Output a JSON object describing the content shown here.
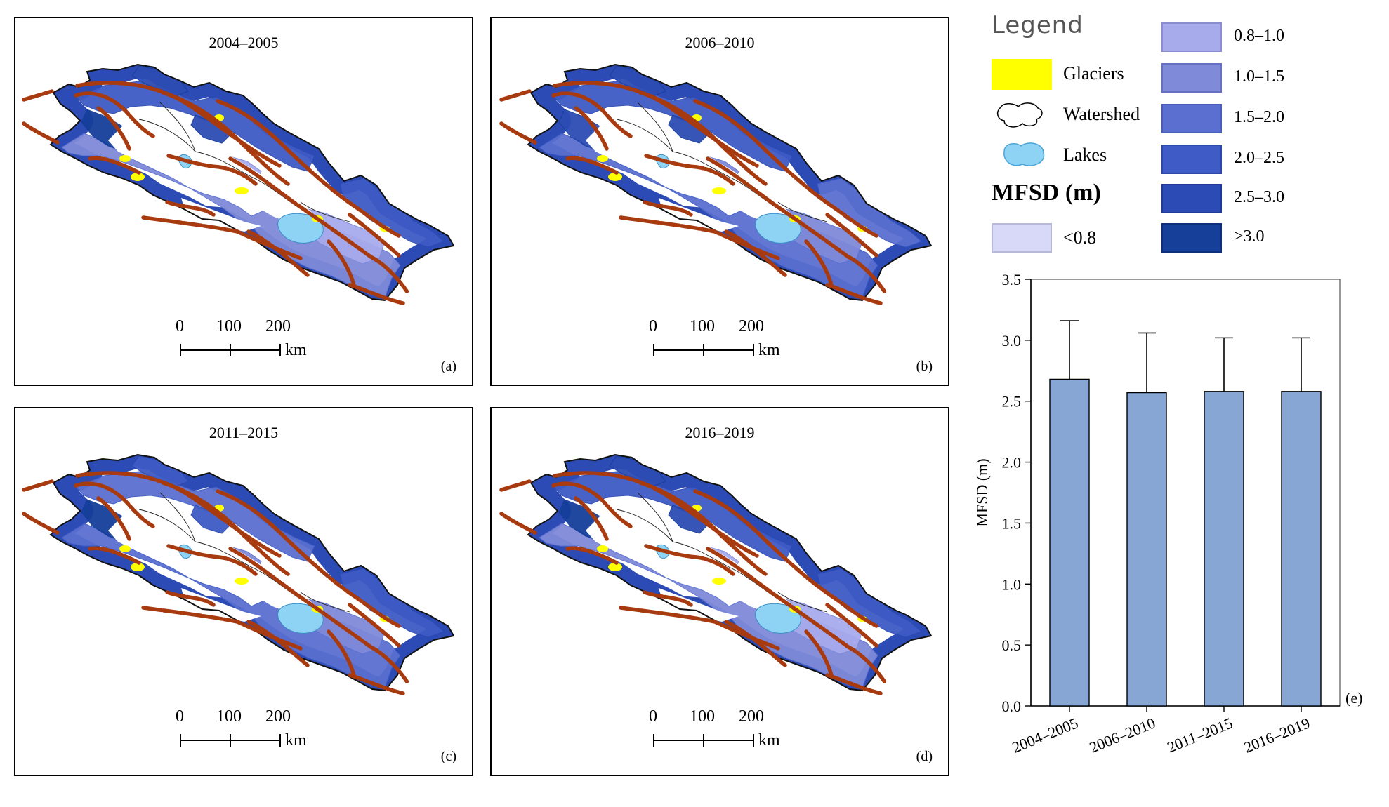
{
  "maps": [
    {
      "title": "2004–2005",
      "label": "(a)"
    },
    {
      "title": "2006–2010",
      "label": "(b)"
    },
    {
      "title": "2011–2015",
      "label": "(c)"
    },
    {
      "title": "2016–2019",
      "label": "(d)"
    }
  ],
  "scalebar": {
    "ticks": [
      "0",
      "100",
      "200"
    ],
    "unit": "km"
  },
  "legend": {
    "title": "Legend",
    "glaciers": "Glaciers",
    "watershed": "Watershed",
    "lakes": "Lakes",
    "mfsd_title": "MFSD (m)",
    "classes": [
      {
        "label": "<0.8",
        "color": "#d8d8f8"
      },
      {
        "label": "0.8–1.0",
        "color": "#a7abec"
      },
      {
        "label": "1.0–1.5",
        "color": "#7f8ad9"
      },
      {
        "label": "1.5–2.0",
        "color": "#5a6fd0"
      },
      {
        "label": "2.0–2.5",
        "color": "#3f5bc6"
      },
      {
        "label": "2.5–3.0",
        "color": "#2d4bb4"
      },
      {
        "label": ">3.0",
        "color": "#163f9a"
      }
    ],
    "colors": {
      "glaciers": "#ffff00",
      "lakes": "#8fd3f4",
      "faults": "#a83a10"
    }
  },
  "chart_data": {
    "type": "bar",
    "label": "(e)",
    "categories": [
      "2004–2005",
      "2006–2010",
      "2011–2015",
      "2016–2019"
    ],
    "values": [
      2.68,
      2.57,
      2.58,
      2.58
    ],
    "error_upper": [
      3.16,
      3.06,
      3.02,
      3.02
    ],
    "ylabel": "MFSD (m)",
    "xlabel": "",
    "ylim": [
      0,
      3.5
    ],
    "yticks": [
      "0.0",
      "0.5",
      "1.0",
      "1.5",
      "2.0",
      "2.5",
      "3.0",
      "3.5"
    ],
    "bar_color": "#88a6d4"
  }
}
